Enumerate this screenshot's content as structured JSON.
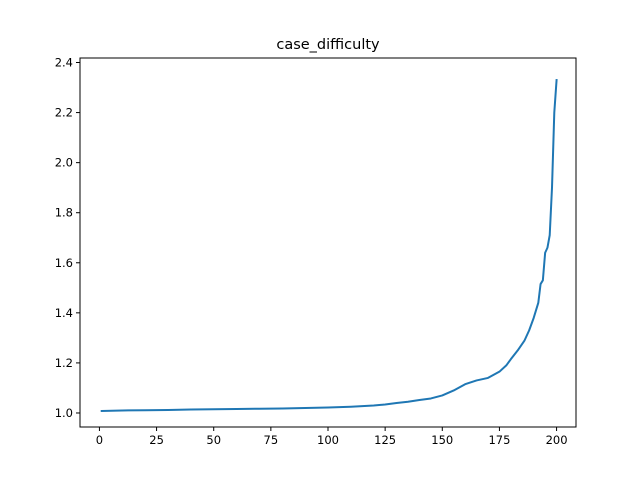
{
  "chart_data": {
    "type": "line",
    "title": "case_difficulty",
    "xlabel": "",
    "ylabel": "",
    "xlim": [
      -8.5,
      208.5
    ],
    "ylim": [
      0.944,
      2.418
    ],
    "xticks": [
      0,
      25,
      50,
      75,
      100,
      125,
      150,
      175,
      200
    ],
    "xtick_labels": [
      "0",
      "25",
      "50",
      "75",
      "100",
      "125",
      "150",
      "175",
      "200"
    ],
    "yticks": [
      1.0,
      1.2,
      1.4,
      1.6,
      1.8,
      2.0,
      2.2,
      2.4
    ],
    "ytick_labels": [
      "1.0",
      "1.2",
      "1.4",
      "1.6",
      "1.8",
      "2.0",
      "2.2",
      "2.4"
    ],
    "grid": false,
    "legend": "none",
    "line_color": "#1f77b4",
    "series": [
      {
        "x": [
          1,
          10,
          20,
          30,
          40,
          50,
          60,
          70,
          80,
          90,
          100,
          110,
          120,
          125,
          130,
          135,
          140,
          145,
          150,
          155,
          160,
          165,
          170,
          175,
          178,
          180,
          183,
          186,
          188,
          190,
          192,
          193,
          194,
          195,
          196,
          197,
          198,
          199,
          200
        ],
        "y": [
          1.008,
          1.01,
          1.011,
          1.012,
          1.014,
          1.015,
          1.016,
          1.017,
          1.018,
          1.02,
          1.022,
          1.025,
          1.03,
          1.034,
          1.04,
          1.045,
          1.052,
          1.058,
          1.07,
          1.09,
          1.115,
          1.13,
          1.14,
          1.165,
          1.19,
          1.215,
          1.25,
          1.29,
          1.33,
          1.38,
          1.44,
          1.515,
          1.53,
          1.64,
          1.66,
          1.71,
          1.9,
          2.2,
          2.33
        ]
      }
    ]
  }
}
